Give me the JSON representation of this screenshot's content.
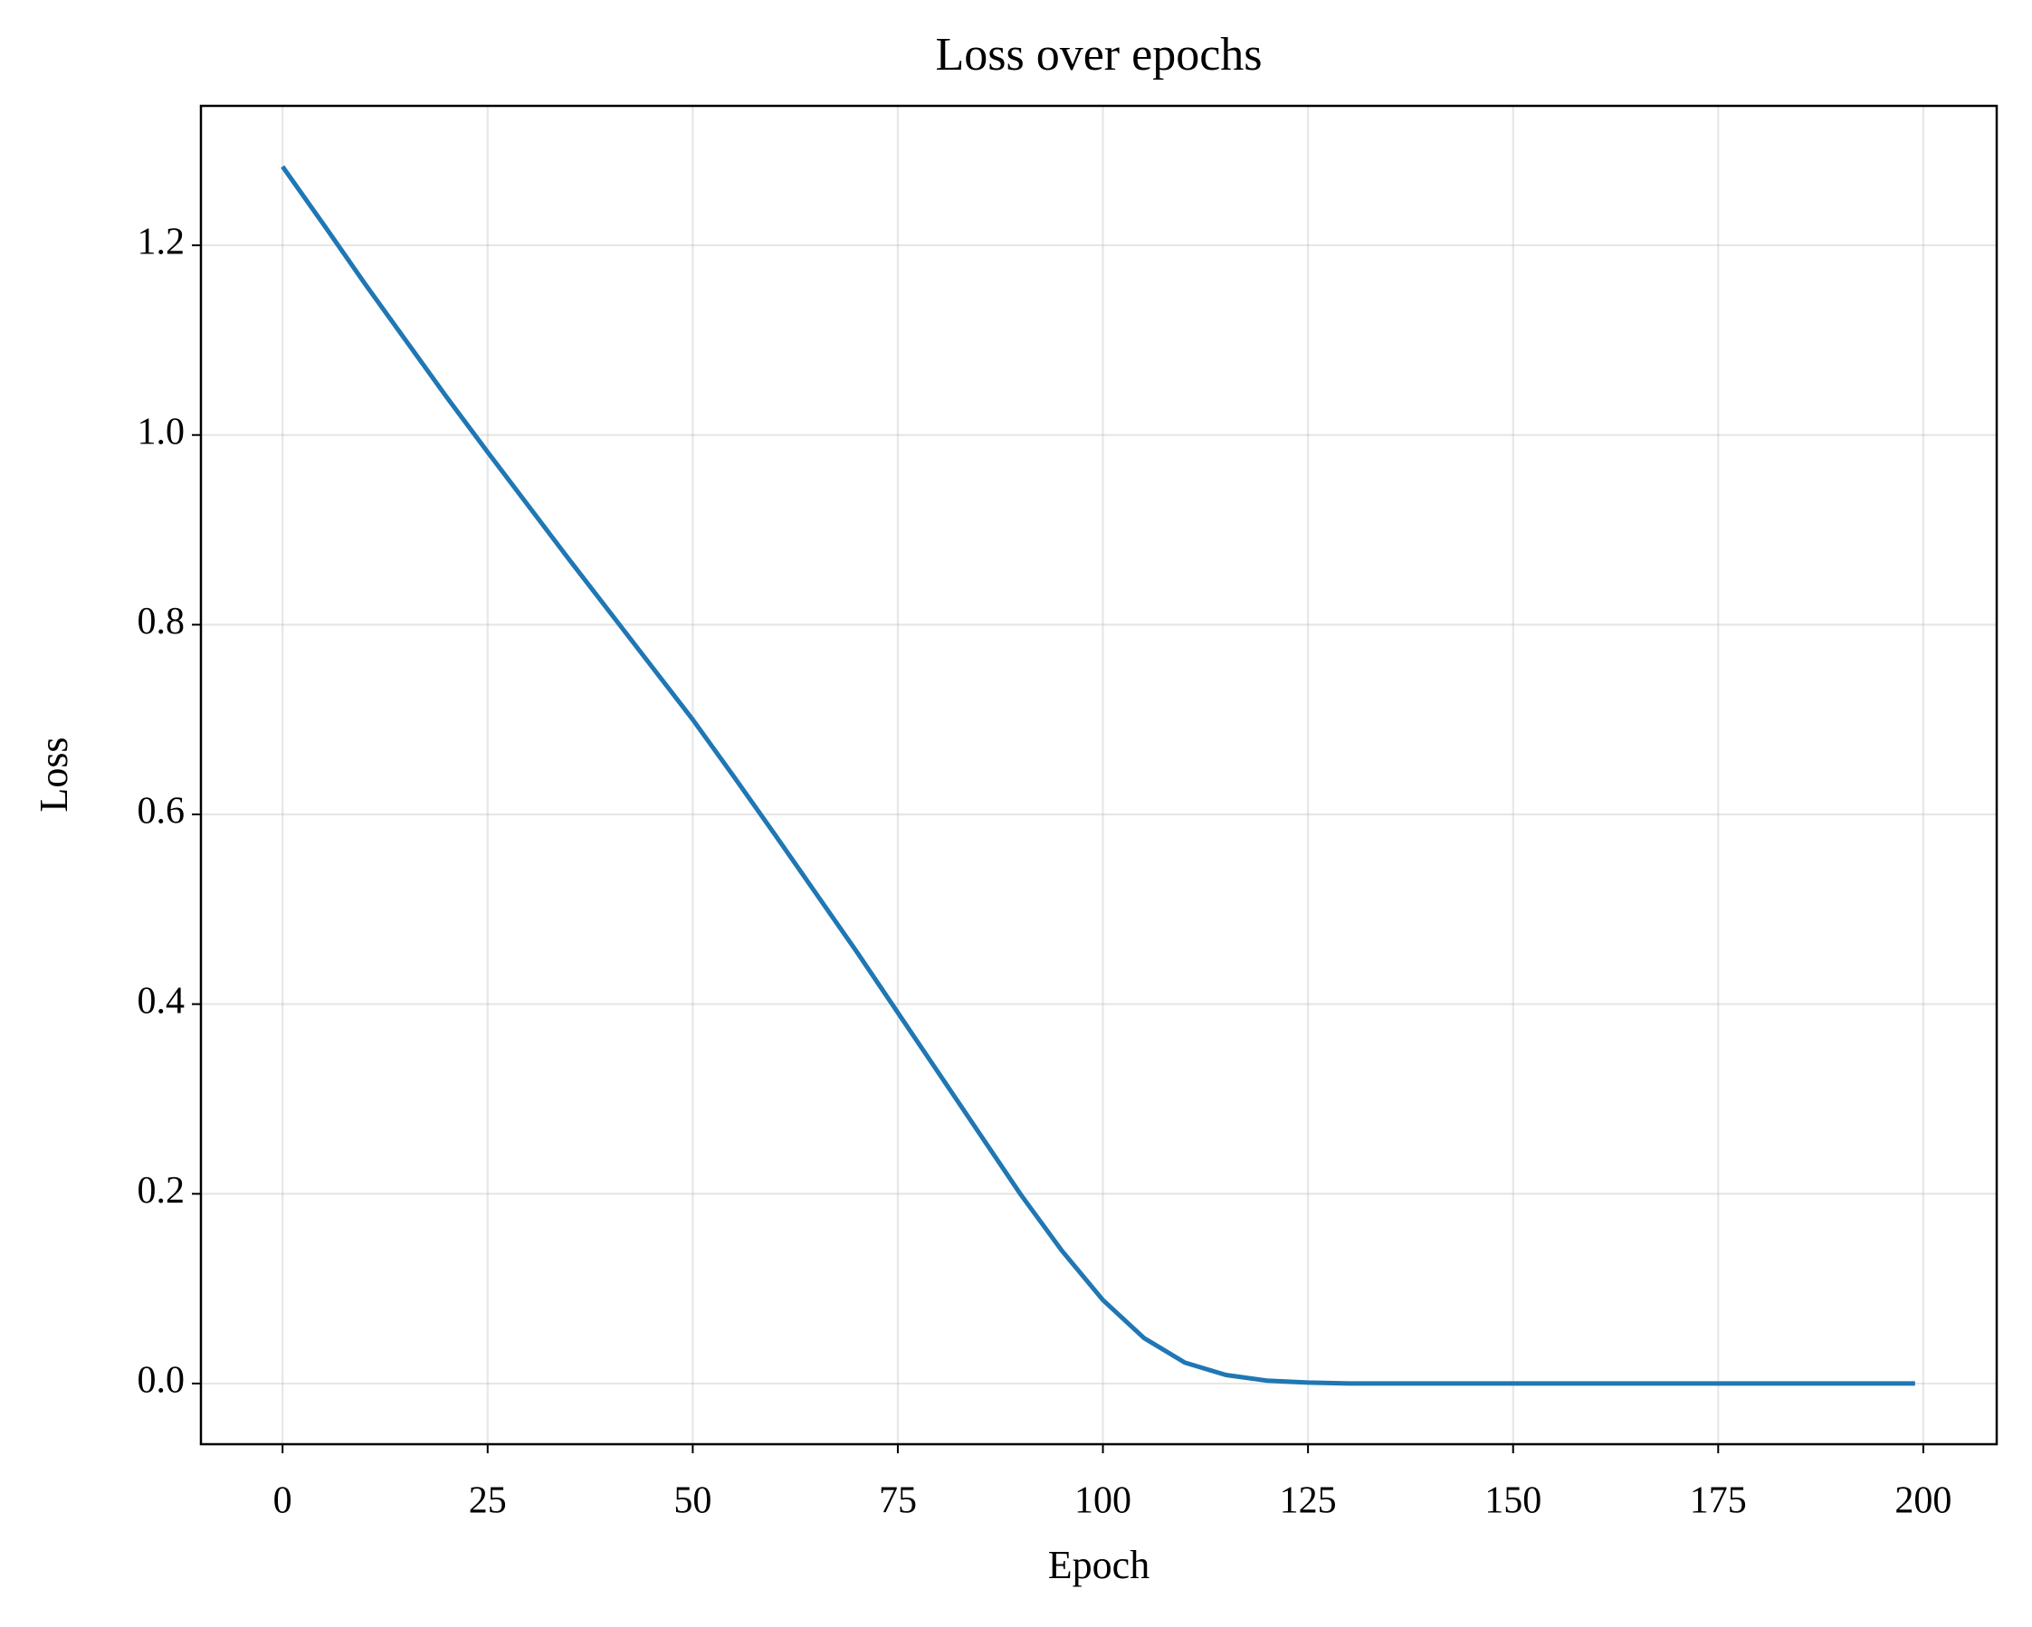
{
  "chart_data": {
    "type": "line",
    "title": "Loss over epochs",
    "x_label": "Epoch",
    "y_label": "Loss",
    "x": [
      0,
      5,
      10,
      15,
      20,
      25,
      30,
      35,
      40,
      45,
      50,
      55,
      60,
      65,
      70,
      75,
      80,
      85,
      90,
      95,
      100,
      105,
      110,
      115,
      120,
      125,
      130,
      135,
      140,
      145,
      150,
      155,
      160,
      165,
      170,
      175,
      180,
      185,
      190,
      195,
      199
    ],
    "series": [
      {
        "name": "Loss",
        "color": "#1f77b4",
        "values": [
          1.283,
          1.222,
          1.16,
          1.1,
          1.04,
          0.982,
          0.925,
          0.868,
          0.812,
          0.756,
          0.7,
          0.64,
          0.579,
          0.517,
          0.455,
          0.391,
          0.327,
          0.263,
          0.199,
          0.14,
          0.088,
          0.048,
          0.022,
          0.009,
          0.003,
          0.001,
          0,
          0,
          0,
          0,
          0,
          0,
          0,
          0,
          0,
          0,
          0,
          0,
          0,
          0,
          0
        ]
      }
    ],
    "xlim": [
      -9.95,
      208.95
    ],
    "ylim": [
      -0.064,
      1.347
    ],
    "xticks": [
      0,
      25,
      50,
      75,
      100,
      125,
      150,
      175,
      200
    ],
    "yticks": [
      {
        "value": 0,
        "label": "0.0"
      },
      0.2,
      0.4,
      0.6,
      0.8,
      {
        "value": 1,
        "label": "1.0"
      },
      1.2
    ],
    "grid": true
  }
}
